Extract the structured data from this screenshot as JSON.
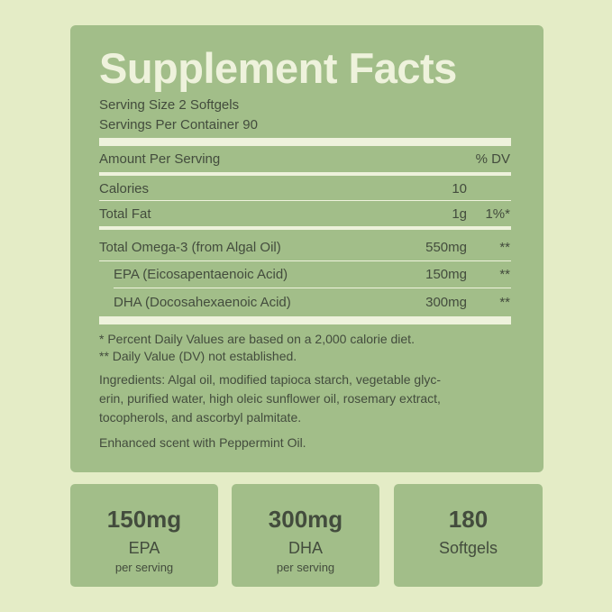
{
  "label": {
    "title": "Supplement Facts",
    "serving_size": "Serving Size 2 Softgels",
    "servings_per_container": "Servings Per Container 90",
    "header": {
      "amount": "Amount Per Serving",
      "dv": "% DV"
    },
    "rows": [
      {
        "name": "Calories",
        "amount": "10"
      },
      {
        "name": "Total Fat",
        "amount": "1g",
        "dv": "1%*"
      },
      {
        "name": "Total Omega-3 (from Algal Oil)",
        "amount": "550mg",
        "dv": "**"
      },
      {
        "name": "EPA (Eicosapentaenoic Acid)",
        "amount": "150mg",
        "dv": "**"
      },
      {
        "name": "DHA (Docosahexaenoic Acid)",
        "amount": "300mg",
        "dv": "**"
      }
    ],
    "footnotes": [
      "* Percent Daily Values are based on a 2,000 calorie diet.",
      "** Daily Value (DV) not established."
    ],
    "ingredients": [
      "Ingredients: Algal oil, modified tapioca starch, vegetable glyc-",
      "erin, purified water, high oleic sunflower oil, rosemary extract,",
      "tocopherols, and ascorbyl palmitate."
    ],
    "note": "Enhanced scent with Peppermint Oil."
  },
  "highlights": [
    {
      "value": "150mg",
      "label": "EPA",
      "sub": "per serving"
    },
    {
      "value": "300mg",
      "label": "DHA",
      "sub": "per serving"
    },
    {
      "value": "180",
      "label": "Softgels"
    }
  ]
}
